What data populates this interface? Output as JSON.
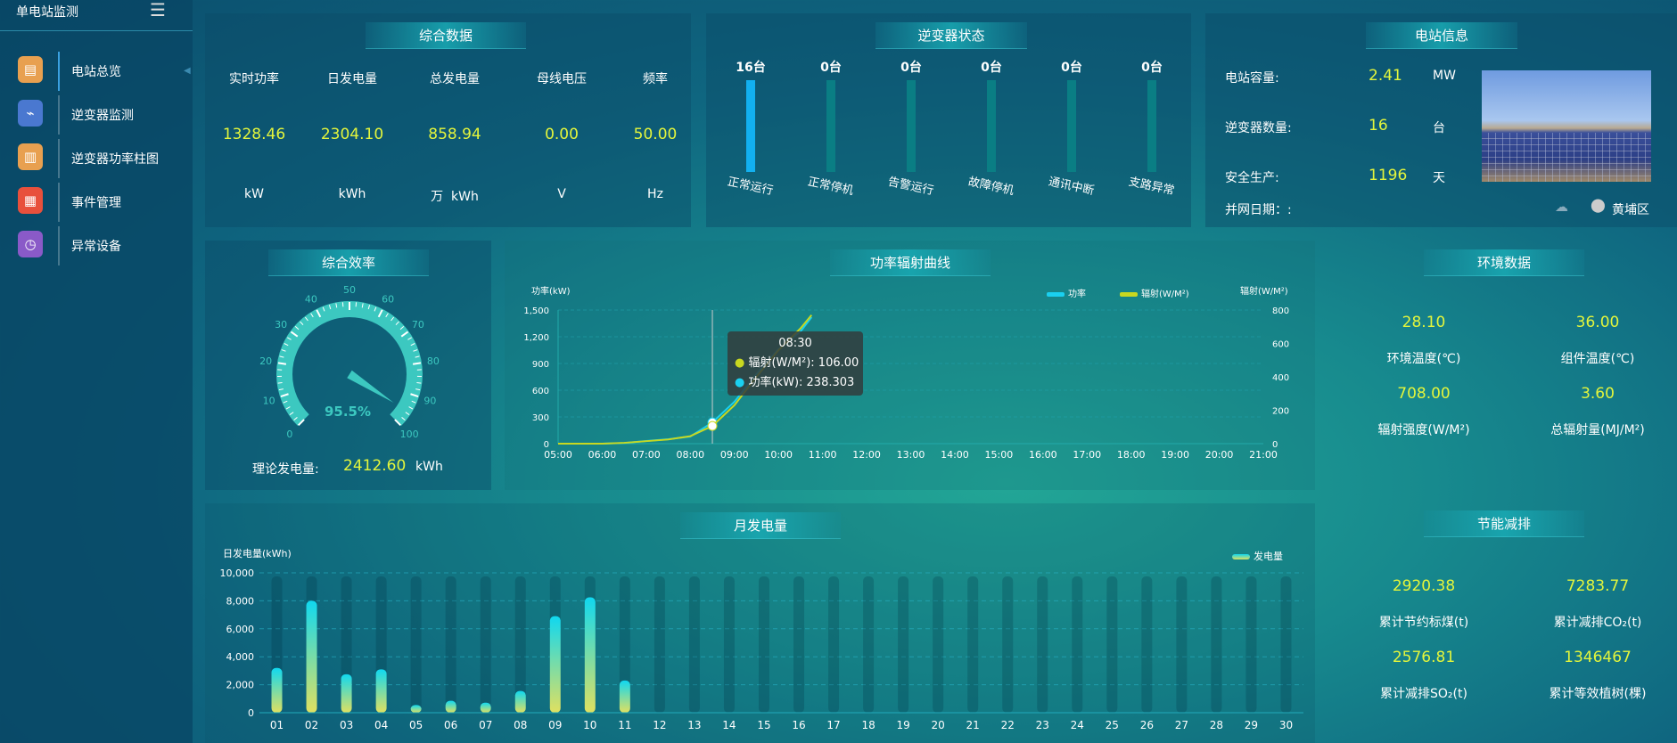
{
  "sidebar": {
    "title": "单电站监测",
    "menu_icon": "hamburger-icon",
    "items": [
      {
        "label": "电站总览",
        "icon": "document-icon",
        "color": "#e8a050",
        "active": true
      },
      {
        "label": "逆变器监测",
        "icon": "monitor-pulse-icon",
        "color": "#4a78d0"
      },
      {
        "label": "逆变器功率柱图",
        "icon": "bar-chart-icon",
        "color": "#e8a050"
      },
      {
        "label": "事件管理",
        "icon": "notepad-icon",
        "color": "#e8503c"
      },
      {
        "label": "异常设备",
        "icon": "list-clock-icon",
        "color": "#8a5ac8"
      }
    ]
  },
  "summary": {
    "title": "综合数据",
    "items": [
      {
        "label": "实时功率",
        "value": "1328.46",
        "unit": "kW"
      },
      {
        "label": "日发电量",
        "value": "2304.10",
        "unit": "kWh"
      },
      {
        "label": "总发电量",
        "value": "858.94",
        "unit": "万  kWh"
      },
      {
        "label": "母线电压",
        "value": "0.00",
        "unit": "V"
      },
      {
        "label": "频率",
        "value": "50.00",
        "unit": "Hz"
      }
    ]
  },
  "inverter": {
    "title": "逆变器状态",
    "items": [
      {
        "count": "16台",
        "label": "正常运行",
        "value": 16
      },
      {
        "count": "0台",
        "label": "正常停机",
        "value": 0
      },
      {
        "count": "0台",
        "label": "告警运行",
        "value": 0
      },
      {
        "count": "0台",
        "label": "故障停机",
        "value": 0
      },
      {
        "count": "0台",
        "label": "通讯中断",
        "value": 0
      },
      {
        "count": "0台",
        "label": "支路异常",
        "value": 0
      }
    ],
    "total": 16
  },
  "station": {
    "title": "电站信息",
    "rows": [
      {
        "label": "电站容量:",
        "value": "2.41",
        "unit": "MW"
      },
      {
        "label": "逆变器数量:",
        "value": "16",
        "unit": "台"
      },
      {
        "label": "安全生产:",
        "value": "1196",
        "unit": "天"
      }
    ],
    "grid_date": "并网日期：:",
    "location": "黄埔区",
    "weather_icon": "cloud-question-icon",
    "location_icon": "map-pin-icon"
  },
  "efficiency": {
    "title": "综合效率",
    "value": 95.5,
    "value_text": "95.5%",
    "ticks": [
      "0",
      "10",
      "20",
      "30",
      "40",
      "50",
      "60",
      "70",
      "80",
      "90",
      "100"
    ],
    "theory_label": "理论发电量:",
    "theory_value": "2412.60",
    "theory_unit": "kWh"
  },
  "chart_data": [
    {
      "type": "line",
      "title": "功率辐射曲线",
      "ylabel": "功率(kW)",
      "y2label": "辐射(W/M²)",
      "ylim": [
        0,
        1500
      ],
      "y2lim": [
        0,
        800
      ],
      "yticks": [
        "0",
        "300",
        "600",
        "900",
        "1,200",
        "1,500"
      ],
      "y2ticks": [
        "0",
        "200",
        "400",
        "600",
        "800"
      ],
      "xticks": [
        "05:00",
        "06:00",
        "07:00",
        "08:00",
        "09:00",
        "10:00",
        "11:00",
        "12:00",
        "13:00",
        "14:00",
        "15:00",
        "16:00",
        "17:00",
        "18:00",
        "19:00",
        "20:00",
        "21:00"
      ],
      "legend_position": "top-right",
      "grid": true,
      "x": [
        "05:00",
        "05:30",
        "06:00",
        "06:30",
        "07:00",
        "07:30",
        "08:00",
        "08:30",
        "09:00",
        "09:30",
        "10:00",
        "10:30",
        "10:45"
      ],
      "series": [
        {
          "name": "功率",
          "axis": "left",
          "color": "#1ad0f0",
          "values": [
            0,
            0,
            0,
            8,
            30,
            50,
            80,
            238.303,
            470,
            780,
            1060,
            1260,
            1420
          ]
        },
        {
          "name": "辐射(W/M²)",
          "axis": "right",
          "color": "#c8d820",
          "values": [
            0,
            0,
            0,
            5,
            15,
            25,
            45,
            106,
            230,
            400,
            560,
            690,
            770
          ]
        }
      ],
      "tooltip": {
        "time": "08:30",
        "rows": [
          {
            "label": "辐射(W/M²): 106.00",
            "color": "#c8d820"
          },
          {
            "label": "功率(kW): 238.303",
            "color": "#1ad0f0"
          }
        ]
      }
    },
    {
      "type": "bar",
      "title": "月发电量",
      "ylabel": "日发电量(kWh)",
      "ylim": [
        0,
        10000
      ],
      "yticks": [
        "0",
        "2,000",
        "4,000",
        "6,000",
        "8,000",
        "10,000"
      ],
      "legend": "发电量",
      "legend_position": "top-right",
      "grid": true,
      "categories": [
        "01",
        "02",
        "03",
        "04",
        "05",
        "06",
        "07",
        "08",
        "09",
        "10",
        "11",
        "12",
        "13",
        "14",
        "15",
        "16",
        "17",
        "18",
        "19",
        "20",
        "21",
        "22",
        "23",
        "24",
        "25",
        "26",
        "27",
        "28",
        "29",
        "30"
      ],
      "values": [
        3200,
        8000,
        2750,
        3100,
        550,
        850,
        720,
        1550,
        6900,
        8250,
        2300,
        0,
        0,
        0,
        0,
        0,
        0,
        0,
        0,
        0,
        0,
        0,
        0,
        0,
        0,
        0,
        0,
        0,
        0,
        0
      ]
    }
  ],
  "env": {
    "title": "环境数据",
    "items": [
      {
        "value": "28.10",
        "label": "环境温度(℃)"
      },
      {
        "value": "36.00",
        "label": "组件温度(℃)"
      },
      {
        "value": "708.00",
        "label": "辐射强度(W/M²)"
      },
      {
        "value": "3.60",
        "label": "总辐射量(MJ/M²)"
      }
    ]
  },
  "saving": {
    "title": "节能减排",
    "items": [
      {
        "value": "2920.38",
        "label": "累计节约标煤(t)"
      },
      {
        "value": "7283.77",
        "label": "累计减排CO₂(t)"
      },
      {
        "value": "2576.81",
        "label": "累计减排SO₂(t)"
      },
      {
        "value": "1346467",
        "label": "累计等效植树(棵)"
      }
    ]
  }
}
